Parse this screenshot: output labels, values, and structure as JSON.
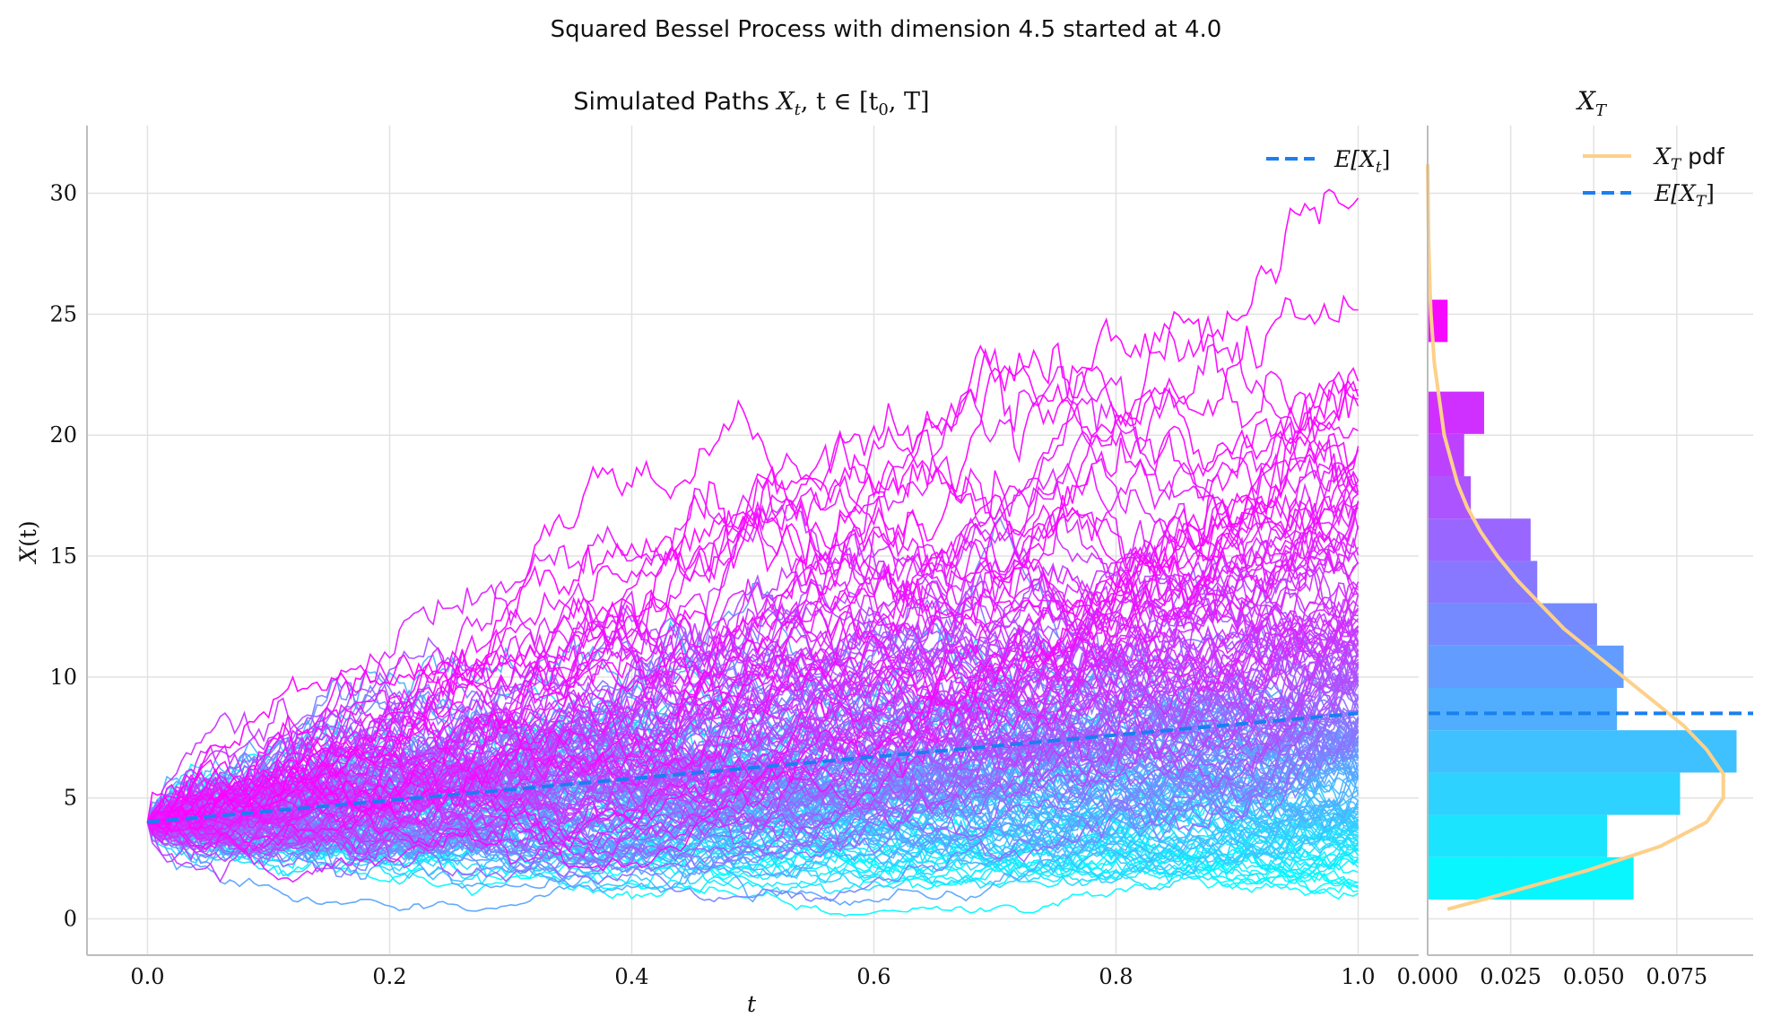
{
  "figure": {
    "suptitle": "Squared Bessel Process with dimension 4.5 started at 4.0"
  },
  "chart_data": [
    {
      "type": "line",
      "title_prefix": "Simulated Paths ",
      "title_math": "X",
      "title_math_sub": "t",
      "title_math_rest": ", t ∈ [t",
      "title_math_sub2": "0",
      "title_math_end": ", T]",
      "xlabel": "t",
      "ylabel_main": "X",
      "ylabel_rest": "(t)",
      "xlim": [
        -0.05,
        1.05
      ],
      "ylim": [
        -1.5,
        32.8
      ],
      "xticks": [
        "0.0",
        "0.2",
        "0.4",
        "0.6",
        "0.8",
        "1.0"
      ],
      "yticks": [
        "0",
        "5",
        "10",
        "15",
        "20",
        "25",
        "30"
      ],
      "grid": true,
      "legend_position": "top-right",
      "legend": [
        {
          "label_main": "E[X",
          "label_sub": "t",
          "label_end": "]",
          "style": "dashed",
          "color": "#1a7ff0"
        }
      ],
      "n_paths": 200,
      "n_steps": 500,
      "t0": 0.0,
      "T": 1.0,
      "x0": 4.0,
      "dimension": 4.5,
      "colormap": [
        "#00ffff",
        "#ff00ff"
      ],
      "mean_line": {
        "x": [
          0.0,
          1.0
        ],
        "y": [
          4.0,
          8.5
        ],
        "color": "#1a7ff0"
      }
    },
    {
      "type": "bar",
      "orientation": "horizontal",
      "title_main": "X",
      "title_sub": "T",
      "xlim": [
        0.0,
        0.098
      ],
      "xticks": [
        "0.000",
        "0.025",
        "0.050",
        "0.075"
      ],
      "grid": true,
      "legend_position": "top-right",
      "legend": [
        {
          "label_main": "X",
          "label_sub": "T",
          "label_end": " pdf",
          "style": "solid",
          "color": "#fdd08a"
        },
        {
          "label_main": "E[X",
          "label_sub": "T",
          "label_end": "]",
          "style": "dashed",
          "color": "#1a7ff0"
        }
      ],
      "bins": [
        {
          "y0": 0.8,
          "y1": 2.55,
          "value": 0.062
        },
        {
          "y0": 2.55,
          "y1": 4.3,
          "value": 0.054
        },
        {
          "y0": 4.3,
          "y1": 6.05,
          "value": 0.076
        },
        {
          "y0": 6.05,
          "y1": 7.8,
          "value": 0.093
        },
        {
          "y0": 7.8,
          "y1": 9.55,
          "value": 0.057
        },
        {
          "y0": 9.55,
          "y1": 11.3,
          "value": 0.059
        },
        {
          "y0": 11.3,
          "y1": 13.05,
          "value": 0.051
        },
        {
          "y0": 13.05,
          "y1": 14.8,
          "value": 0.033
        },
        {
          "y0": 14.8,
          "y1": 16.55,
          "value": 0.031
        },
        {
          "y0": 16.55,
          "y1": 18.3,
          "value": 0.013
        },
        {
          "y0": 18.3,
          "y1": 20.05,
          "value": 0.011
        },
        {
          "y0": 20.05,
          "y1": 21.8,
          "value": 0.017
        },
        {
          "y0": 21.8,
          "y1": 23.55,
          "value": 0.0
        },
        {
          "y0": 23.55,
          "y1": 25.3,
          "value": 0.0
        },
        {
          "y0": 23.85,
          "y1": 25.6,
          "value": 0.006
        }
      ],
      "pdf_curve": {
        "y": [
          0.4,
          1,
          2,
          3,
          4,
          5,
          6,
          7,
          8,
          9,
          10,
          11,
          12,
          13,
          14,
          15,
          16,
          17,
          18,
          19,
          20,
          21,
          22,
          23,
          24,
          25,
          26,
          27,
          28,
          29,
          30,
          31.2
        ],
        "x": [
          0.006,
          0.022,
          0.048,
          0.07,
          0.084,
          0.089,
          0.089,
          0.084,
          0.077,
          0.068,
          0.059,
          0.05,
          0.041,
          0.034,
          0.027,
          0.021,
          0.016,
          0.012,
          0.009,
          0.007,
          0.005,
          0.004,
          0.003,
          0.002,
          0.0015,
          0.001,
          0.0007,
          0.0005,
          0.0003,
          0.0002,
          0.0001,
          0.0
        ]
      },
      "mean_value": 8.5
    }
  ]
}
